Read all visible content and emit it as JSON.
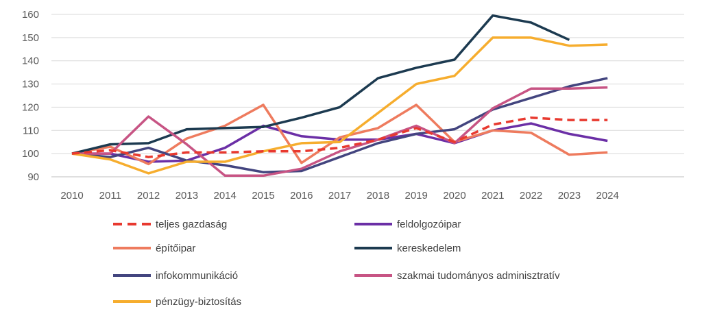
{
  "chart_data": {
    "type": "line",
    "title": "",
    "xlabel": "",
    "ylabel": "",
    "x": [
      "2010",
      "2011",
      "2012",
      "2013",
      "2014",
      "2015",
      "2016",
      "2017",
      "2018",
      "2019",
      "2020",
      "2021",
      "2022",
      "2023",
      "2024"
    ],
    "ylim": [
      90,
      160
    ],
    "yticks": [
      90,
      100,
      110,
      120,
      130,
      140,
      150,
      160
    ],
    "grid": "horizontal",
    "legend_position": "bottom",
    "series": [
      {
        "name": "teljes gazdaság",
        "color": "#e8392f",
        "dashed": true,
        "values": [
          100,
          101.5,
          98.5,
          100.5,
          100.5,
          101,
          101,
          102.5,
          106,
          111,
          105,
          112.5,
          115.5,
          114.5,
          114.5
        ]
      },
      {
        "name": "feldolgozóipar",
        "color": "#6b2fa6",
        "dashed": false,
        "values": [
          100,
          100,
          96.5,
          97,
          102.5,
          112,
          107.5,
          106,
          106,
          108.5,
          104.5,
          110,
          113,
          108.5,
          105.5
        ]
      },
      {
        "name": "építőipar",
        "color": "#ee7b5e",
        "dashed": false,
        "values": [
          100,
          103,
          95.5,
          106.5,
          112,
          121,
          96,
          107,
          111,
          121,
          105,
          110,
          109,
          99.5,
          100.5
        ]
      },
      {
        "name": "kereskedelem",
        "color": "#1c3a50",
        "dashed": false,
        "values": [
          100,
          104,
          104.5,
          110.5,
          111,
          111.5,
          115.5,
          120,
          132.5,
          137,
          140.5,
          159.5,
          156.5,
          149,
          null
        ]
      },
      {
        "name": "infokommunikáció",
        "color": "#43457f",
        "dashed": false,
        "values": [
          100,
          98.5,
          102.5,
          97,
          95,
          92,
          92.5,
          98.5,
          104.5,
          108.5,
          110.5,
          119,
          124,
          129,
          132.5
        ]
      },
      {
        "name": "szakmai tudományos adminisztratív",
        "color": "#c75484",
        "dashed": false,
        "values": [
          100,
          100,
          116,
          104,
          90.5,
          90.5,
          93.5,
          101,
          106,
          112,
          104.5,
          119.5,
          128,
          128,
          128.5
        ]
      },
      {
        "name": "pénzügy-biztosítás",
        "color": "#f6ad2e",
        "dashed": false,
        "values": [
          100,
          97.5,
          91.5,
          96.5,
          96.5,
          101,
          104.5,
          105,
          117.5,
          130,
          133.5,
          150,
          150,
          146.5,
          147
        ]
      }
    ]
  }
}
